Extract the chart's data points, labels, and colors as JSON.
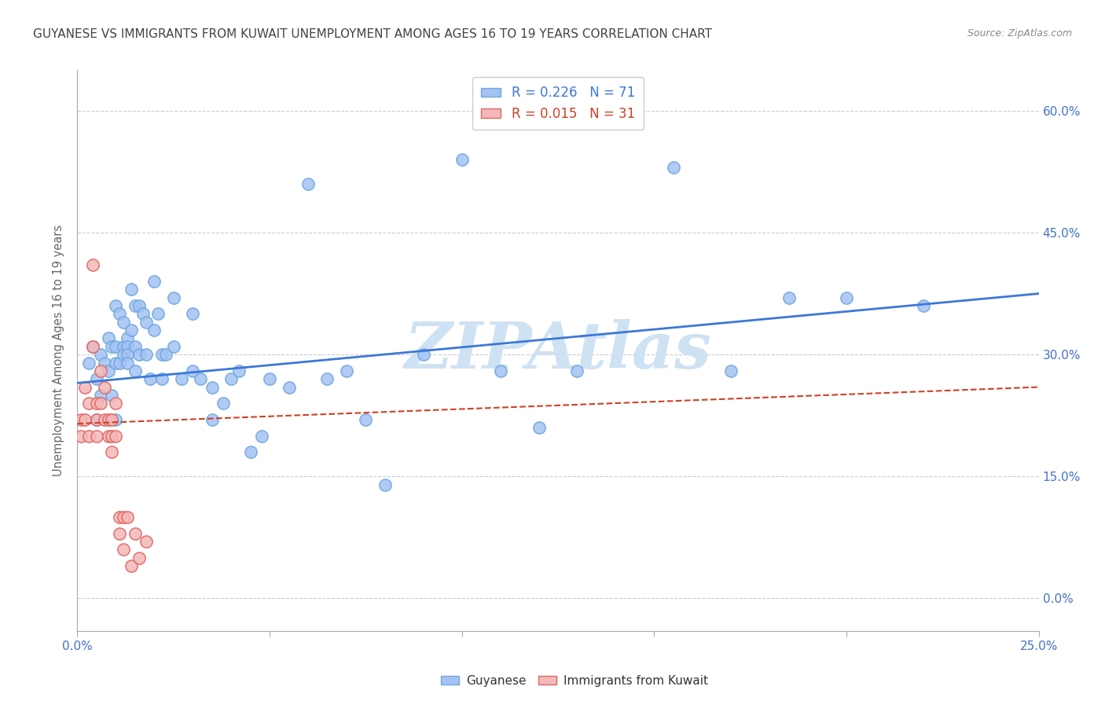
{
  "title": "GUYANESE VS IMMIGRANTS FROM KUWAIT UNEMPLOYMENT AMONG AGES 16 TO 19 YEARS CORRELATION CHART",
  "source": "Source: ZipAtlas.com",
  "ylabel_label": "Unemployment Among Ages 16 to 19 years",
  "xmin": 0.0,
  "xmax": 0.25,
  "ymin": -0.04,
  "ymax": 0.65,
  "ytick_vals": [
    0.0,
    0.15,
    0.3,
    0.45,
    0.6
  ],
  "ytick_labels": [
    "0.0%",
    "15.0%",
    "30.0%",
    "45.0%",
    "60.0%"
  ],
  "xtick_vals": [
    0.0,
    0.05,
    0.1,
    0.15,
    0.2,
    0.25
  ],
  "xtick_label_left": "0.0%",
  "xtick_label_right": "25.0%",
  "watermark": "ZIPAtlas",
  "blue_scatter_x": [
    0.003,
    0.004,
    0.005,
    0.005,
    0.006,
    0.006,
    0.007,
    0.008,
    0.008,
    0.009,
    0.009,
    0.01,
    0.01,
    0.01,
    0.01,
    0.011,
    0.011,
    0.012,
    0.012,
    0.012,
    0.013,
    0.013,
    0.013,
    0.013,
    0.014,
    0.014,
    0.015,
    0.015,
    0.015,
    0.016,
    0.016,
    0.017,
    0.018,
    0.018,
    0.019,
    0.02,
    0.02,
    0.021,
    0.022,
    0.022,
    0.023,
    0.025,
    0.025,
    0.027,
    0.03,
    0.03,
    0.032,
    0.035,
    0.035,
    0.038,
    0.04,
    0.042,
    0.045,
    0.048,
    0.05,
    0.055,
    0.06,
    0.065,
    0.07,
    0.075,
    0.08,
    0.09,
    0.1,
    0.11,
    0.12,
    0.13,
    0.155,
    0.17,
    0.185,
    0.2,
    0.22
  ],
  "blue_scatter_y": [
    0.29,
    0.31,
    0.27,
    0.22,
    0.3,
    0.25,
    0.29,
    0.32,
    0.28,
    0.31,
    0.25,
    0.36,
    0.31,
    0.29,
    0.22,
    0.35,
    0.29,
    0.34,
    0.31,
    0.3,
    0.32,
    0.31,
    0.3,
    0.29,
    0.38,
    0.33,
    0.36,
    0.31,
    0.28,
    0.36,
    0.3,
    0.35,
    0.34,
    0.3,
    0.27,
    0.39,
    0.33,
    0.35,
    0.3,
    0.27,
    0.3,
    0.37,
    0.31,
    0.27,
    0.35,
    0.28,
    0.27,
    0.26,
    0.22,
    0.24,
    0.27,
    0.28,
    0.18,
    0.2,
    0.27,
    0.26,
    0.51,
    0.27,
    0.28,
    0.22,
    0.14,
    0.3,
    0.54,
    0.28,
    0.21,
    0.28,
    0.53,
    0.28,
    0.37,
    0.37,
    0.36
  ],
  "pink_scatter_x": [
    0.001,
    0.001,
    0.002,
    0.002,
    0.003,
    0.003,
    0.004,
    0.004,
    0.005,
    0.005,
    0.005,
    0.006,
    0.006,
    0.007,
    0.007,
    0.008,
    0.008,
    0.009,
    0.009,
    0.009,
    0.01,
    0.01,
    0.011,
    0.011,
    0.012,
    0.012,
    0.013,
    0.014,
    0.015,
    0.016,
    0.018
  ],
  "pink_scatter_y": [
    0.22,
    0.2,
    0.26,
    0.22,
    0.24,
    0.2,
    0.41,
    0.31,
    0.24,
    0.22,
    0.2,
    0.28,
    0.24,
    0.26,
    0.22,
    0.22,
    0.2,
    0.22,
    0.2,
    0.18,
    0.24,
    0.2,
    0.1,
    0.08,
    0.1,
    0.06,
    0.1,
    0.04,
    0.08,
    0.05,
    0.07
  ],
  "blue_line_x": [
    0.0,
    0.25
  ],
  "blue_line_y": [
    0.265,
    0.375
  ],
  "pink_line_x": [
    0.0,
    0.25
  ],
  "pink_line_y": [
    0.215,
    0.26
  ],
  "blue_color": "#a4c2f4",
  "pink_color": "#f4b8b8",
  "blue_dot_edge": "#6fa8dc",
  "pink_dot_edge": "#e06666",
  "blue_line_color": "#3c78d8",
  "pink_line_color": "#cc4125",
  "grid_color": "#cccccc",
  "axis_tick_color": "#4472c4",
  "title_color": "#434343",
  "source_color": "#888888",
  "ylabel_color": "#666666",
  "watermark_color": "#cfe2f3",
  "legend_label_blue": "R = 0.226   N = 71",
  "legend_label_pink": "R = 0.015   N = 31",
  "legend_color_blue": "#3c78d8",
  "legend_color_pink": "#cc4125",
  "bottom_legend_guyanese": "Guyanese",
  "bottom_legend_kuwait": "Immigrants from Kuwait"
}
